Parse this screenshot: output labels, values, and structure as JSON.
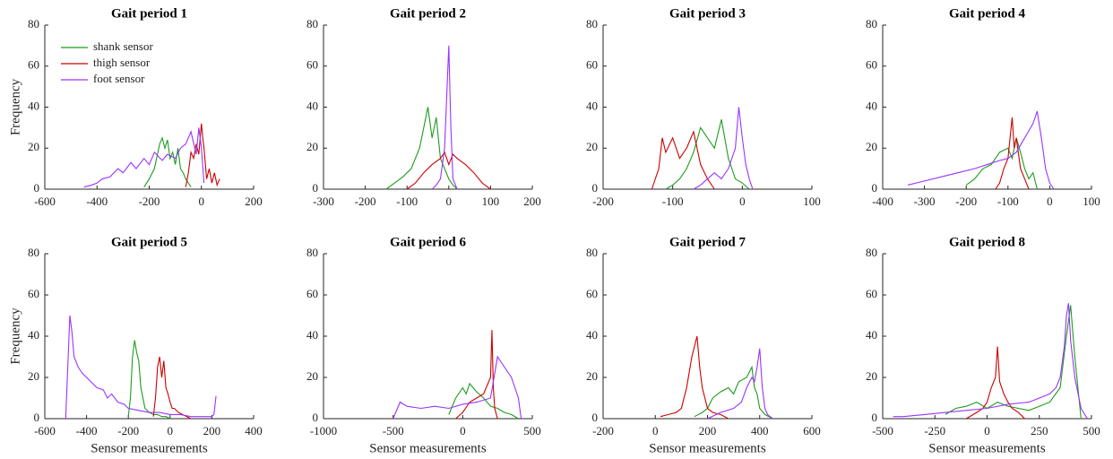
{
  "chart_data": [
    {
      "type": "line",
      "title": "Gait period 1",
      "ylabel": "Frequency",
      "xlim": [
        -600,
        200
      ],
      "xticks": [
        -600,
        -400,
        -200,
        0,
        200
      ],
      "ylim": [
        0,
        80
      ],
      "yticks": [
        0,
        20,
        40,
        60,
        80
      ],
      "legend": "upper left",
      "series": [
        {
          "name": "shank sensor",
          "color": "#1e9b1e",
          "x": [
            -220,
            -200,
            -180,
            -170,
            -160,
            -150,
            -140,
            -130,
            -120,
            -110,
            -100,
            -90,
            -80,
            -70,
            -60,
            -50,
            -40
          ],
          "values": [
            1,
            5,
            10,
            16,
            22,
            25,
            20,
            24,
            15,
            18,
            12,
            20,
            10,
            8,
            5,
            3,
            1
          ]
        },
        {
          "name": "thigh sensor",
          "color": "#cc0000",
          "x": [
            -60,
            -50,
            -40,
            -30,
            -20,
            -10,
            0,
            5,
            10,
            20,
            30,
            40,
            50,
            60,
            70
          ],
          "values": [
            1,
            8,
            18,
            15,
            22,
            17,
            32,
            25,
            20,
            5,
            10,
            3,
            8,
            2,
            5
          ]
        },
        {
          "name": "foot sensor",
          "color": "#9933ff",
          "x": [
            -450,
            -420,
            -400,
            -380,
            -350,
            -320,
            -300,
            -270,
            -250,
            -220,
            -200,
            -180,
            -150,
            -130,
            -100,
            -80,
            -60,
            -40,
            -20,
            -10,
            0,
            10
          ],
          "values": [
            1,
            2,
            3,
            5,
            6,
            10,
            8,
            13,
            10,
            15,
            12,
            18,
            14,
            17,
            15,
            20,
            22,
            28,
            17,
            30,
            20,
            3
          ]
        }
      ]
    },
    {
      "type": "line",
      "title": "Gait period 2",
      "xlim": [
        -300,
        200
      ],
      "xticks": [
        -300,
        -200,
        -100,
        0,
        100,
        200
      ],
      "ylim": [
        0,
        80
      ],
      "yticks": [
        0,
        20,
        40,
        60,
        80
      ],
      "series": [
        {
          "color": "#1e9b1e",
          "x": [
            -150,
            -130,
            -110,
            -100,
            -90,
            -80,
            -70,
            -60,
            -50,
            -40,
            -30,
            -20,
            -10,
            0,
            10,
            20
          ],
          "values": [
            0,
            3,
            6,
            8,
            10,
            15,
            20,
            30,
            40,
            25,
            35,
            15,
            10,
            5,
            2,
            0
          ]
        },
        {
          "color": "#cc0000",
          "x": [
            -100,
            -80,
            -60,
            -40,
            -20,
            -10,
            0,
            10,
            20,
            40,
            60,
            80,
            100
          ],
          "values": [
            0,
            3,
            8,
            12,
            15,
            18,
            12,
            17,
            15,
            12,
            8,
            3,
            0
          ]
        },
        {
          "color": "#9933ff",
          "x": [
            -40,
            -30,
            -20,
            -10,
            -5,
            0,
            5,
            10,
            20
          ],
          "values": [
            0,
            2,
            5,
            20,
            45,
            70,
            30,
            5,
            0
          ]
        }
      ]
    },
    {
      "type": "line",
      "title": "Gait period 3",
      "xlim": [
        -200,
        100
      ],
      "xticks": [
        -200,
        -100,
        0,
        100
      ],
      "ylim": [
        0,
        80
      ],
      "yticks": [
        0,
        20,
        40,
        60,
        80
      ],
      "series": [
        {
          "color": "#1e9b1e",
          "x": [
            -110,
            -100,
            -90,
            -80,
            -70,
            -60,
            -50,
            -40,
            -30,
            -20,
            -10,
            0,
            10
          ],
          "values": [
            0,
            2,
            5,
            10,
            18,
            30,
            25,
            20,
            34,
            15,
            5,
            3,
            0
          ]
        },
        {
          "color": "#cc0000",
          "x": [
            -130,
            -120,
            -115,
            -110,
            -100,
            -90,
            -80,
            -70,
            -60,
            -50,
            -40
          ],
          "values": [
            0,
            10,
            25,
            18,
            25,
            15,
            20,
            28,
            12,
            5,
            0
          ]
        },
        {
          "color": "#9933ff",
          "x": [
            -70,
            -60,
            -50,
            -40,
            -30,
            -20,
            -10,
            -5,
            0,
            5,
            10,
            15
          ],
          "values": [
            0,
            2,
            5,
            8,
            5,
            10,
            20,
            40,
            25,
            12,
            5,
            0
          ]
        }
      ]
    },
    {
      "type": "line",
      "title": "Gait period 4",
      "xlim": [
        -400,
        100
      ],
      "xticks": [
        -400,
        -300,
        -200,
        -100,
        0,
        100
      ],
      "ylim": [
        0,
        80
      ],
      "yticks": [
        0,
        20,
        40,
        60,
        80
      ],
      "series": [
        {
          "color": "#1e9b1e",
          "x": [
            -200,
            -180,
            -160,
            -140,
            -120,
            -100,
            -90,
            -80,
            -70,
            -60,
            -50,
            -40,
            -30
          ],
          "values": [
            2,
            5,
            10,
            12,
            18,
            20,
            15,
            25,
            18,
            10,
            5,
            8,
            0
          ]
        },
        {
          "color": "#cc0000",
          "x": [
            -130,
            -120,
            -110,
            -100,
            -90,
            -85,
            -80,
            -70,
            -60,
            -50
          ],
          "values": [
            0,
            3,
            10,
            15,
            35,
            20,
            25,
            10,
            5,
            0
          ]
        },
        {
          "color": "#9933ff",
          "x": [
            -340,
            -300,
            -260,
            -220,
            -180,
            -150,
            -120,
            -100,
            -80,
            -60,
            -40,
            -30,
            -20,
            -10,
            0,
            10
          ],
          "values": [
            2,
            4,
            6,
            8,
            10,
            12,
            14,
            15,
            18,
            25,
            32,
            38,
            25,
            10,
            3,
            0
          ]
        }
      ]
    },
    {
      "type": "line",
      "title": "Gait period 5",
      "ylabel": "Frequency",
      "xlabel": "Sensor measurements",
      "xlim": [
        -600,
        400
      ],
      "xticks": [
        -600,
        -400,
        -200,
        0,
        200,
        400
      ],
      "ylim": [
        0,
        80
      ],
      "yticks": [
        0,
        20,
        40,
        60,
        80
      ],
      "series": [
        {
          "color": "#1e9b1e",
          "x": [
            -200,
            -190,
            -180,
            -170,
            -160,
            -150,
            -140,
            -130,
            -120,
            -100,
            -80,
            -60,
            -40,
            -20,
            0
          ],
          "values": [
            1,
            10,
            30,
            38,
            32,
            28,
            15,
            10,
            5,
            3,
            2,
            2,
            1,
            1,
            0
          ]
        },
        {
          "color": "#cc0000",
          "x": [
            -80,
            -70,
            -60,
            -50,
            -40,
            -30,
            -20,
            -10,
            0,
            10,
            20,
            40,
            60,
            80,
            100
          ],
          "values": [
            1,
            10,
            25,
            30,
            20,
            28,
            15,
            12,
            8,
            5,
            5,
            3,
            2,
            1,
            0
          ]
        },
        {
          "color": "#9933ff",
          "x": [
            -500,
            -490,
            -480,
            -470,
            -460,
            -440,
            -420,
            -400,
            -380,
            -350,
            -320,
            -300,
            -280,
            -250,
            -220,
            -200,
            -150,
            -100,
            -50,
            0,
            50,
            100,
            150,
            200,
            210,
            220
          ],
          "values": [
            0,
            25,
            50,
            42,
            30,
            25,
            22,
            20,
            18,
            15,
            14,
            10,
            12,
            8,
            7,
            5,
            4,
            3,
            3,
            2,
            2,
            1,
            1,
            1,
            2,
            11
          ]
        }
      ]
    },
    {
      "type": "line",
      "title": "Gait period 6",
      "xlabel": "Sensor measurements",
      "xlim": [
        -1000,
        500
      ],
      "xticks": [
        -1000,
        -500,
        0,
        500
      ],
      "ylim": [
        0,
        80
      ],
      "yticks": [
        0,
        20,
        40,
        60,
        80
      ],
      "series": [
        {
          "color": "#1e9b1e",
          "x": [
            -100,
            -50,
            0,
            25,
            50,
            100,
            150,
            200,
            250,
            300,
            350,
            400
          ],
          "values": [
            2,
            10,
            15,
            12,
            17,
            13,
            10,
            6,
            5,
            3,
            2,
            0
          ]
        },
        {
          "color": "#cc0000",
          "x": [
            -50,
            0,
            50,
            100,
            150,
            200,
            210,
            220,
            230,
            250
          ],
          "values": [
            0,
            3,
            8,
            10,
            12,
            20,
            43,
            15,
            5,
            0
          ]
        },
        {
          "color": "#9933ff",
          "x": [
            -500,
            -450,
            -400,
            -300,
            -200,
            -100,
            0,
            100,
            200,
            250,
            300,
            350,
            400,
            420
          ],
          "values": [
            0,
            8,
            6,
            5,
            6,
            5,
            7,
            8,
            10,
            30,
            25,
            20,
            10,
            0
          ]
        }
      ]
    },
    {
      "type": "line",
      "title": "Gait period 7",
      "xlabel": "Sensor measurements",
      "xlim": [
        -200,
        600
      ],
      "xticks": [
        -200,
        0,
        200,
        400,
        600
      ],
      "ylim": [
        0,
        80
      ],
      "yticks": [
        0,
        20,
        40,
        60,
        80
      ],
      "series": [
        {
          "color": "#1e9b1e",
          "x": [
            150,
            180,
            200,
            220,
            250,
            280,
            300,
            320,
            350,
            370,
            380,
            390,
            400,
            420,
            450
          ],
          "values": [
            1,
            3,
            5,
            10,
            13,
            15,
            12,
            18,
            20,
            25,
            15,
            12,
            5,
            2,
            0
          ]
        },
        {
          "color": "#cc0000",
          "x": [
            20,
            50,
            80,
            100,
            120,
            140,
            150,
            160,
            170,
            180,
            190,
            200,
            220,
            250,
            280
          ],
          "values": [
            1,
            2,
            3,
            5,
            15,
            30,
            35,
            40,
            25,
            15,
            10,
            5,
            3,
            2,
            0
          ]
        },
        {
          "color": "#9933ff",
          "x": [
            200,
            250,
            300,
            330,
            350,
            370,
            380,
            390,
            400,
            410,
            420,
            430,
            450
          ],
          "values": [
            0,
            3,
            5,
            8,
            15,
            20,
            18,
            25,
            34,
            15,
            5,
            2,
            0
          ]
        }
      ]
    },
    {
      "type": "line",
      "title": "Gait period 8",
      "xlabel": "Sensor measurements",
      "xlim": [
        -500,
        500
      ],
      "xticks": [
        -500,
        -250,
        0,
        250,
        500
      ],
      "ylim": [
        0,
        80
      ],
      "yticks": [
        0,
        20,
        40,
        60,
        80
      ],
      "series": [
        {
          "color": "#1e9b1e",
          "x": [
            -200,
            -150,
            -100,
            -50,
            0,
            50,
            100,
            150,
            200,
            250,
            300,
            350,
            380,
            400,
            420,
            450
          ],
          "values": [
            2,
            5,
            6,
            8,
            5,
            8,
            6,
            5,
            4,
            6,
            8,
            15,
            40,
            55,
            30,
            0
          ]
        },
        {
          "color": "#cc0000",
          "x": [
            -100,
            -50,
            -20,
            0,
            20,
            40,
            50,
            60,
            80,
            100,
            120,
            150,
            180
          ],
          "values": [
            0,
            3,
            5,
            8,
            15,
            20,
            35,
            18,
            12,
            8,
            5,
            3,
            0
          ]
        },
        {
          "color": "#9933ff",
          "x": [
            -450,
            -400,
            -300,
            -200,
            -100,
            0,
            100,
            200,
            250,
            300,
            330,
            350,
            370,
            380,
            390,
            400,
            420,
            450,
            480
          ],
          "values": [
            1,
            1,
            2,
            3,
            4,
            5,
            7,
            8,
            10,
            12,
            15,
            20,
            35,
            50,
            56,
            38,
            20,
            5,
            0
          ]
        }
      ]
    }
  ]
}
